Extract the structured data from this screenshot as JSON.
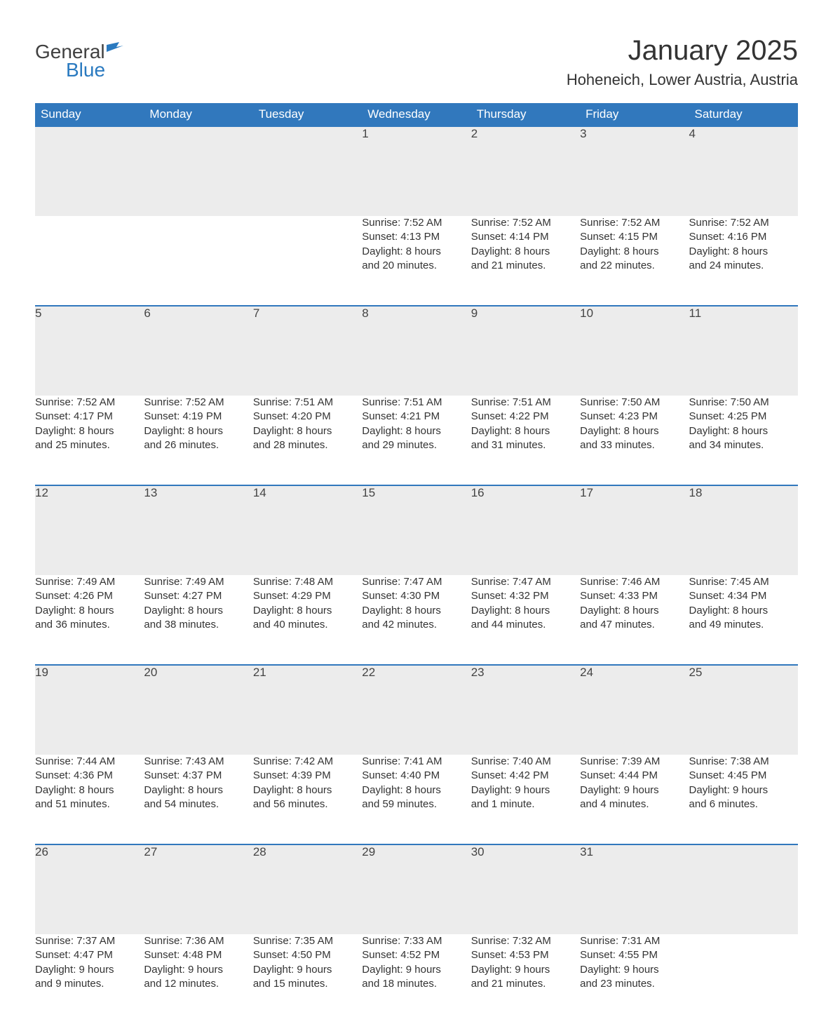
{
  "logo": {
    "general": "General",
    "blue": "Blue"
  },
  "title": "January 2025",
  "location": "Hoheneich, Lower Austria, Austria",
  "colors": {
    "header_bg": "#3178bd",
    "header_text": "#ffffff",
    "daynum_bg": "#ececec",
    "border_top": "#3178bd",
    "text": "#333333",
    "logo_blue": "#2a7ac0",
    "logo_gray": "#404040",
    "background": "#ffffff"
  },
  "fonts": {
    "title_size": 40,
    "location_size": 22,
    "header_cell_size": 17,
    "daynum_size": 17,
    "detail_size": 15
  },
  "columns": [
    "Sunday",
    "Monday",
    "Tuesday",
    "Wednesday",
    "Thursday",
    "Friday",
    "Saturday"
  ],
  "weeks": [
    [
      null,
      null,
      null,
      {
        "n": "1",
        "sr": "Sunrise: 7:52 AM",
        "ss": "Sunset: 4:13 PM",
        "dl1": "Daylight: 8 hours",
        "dl2": "and 20 minutes."
      },
      {
        "n": "2",
        "sr": "Sunrise: 7:52 AM",
        "ss": "Sunset: 4:14 PM",
        "dl1": "Daylight: 8 hours",
        "dl2": "and 21 minutes."
      },
      {
        "n": "3",
        "sr": "Sunrise: 7:52 AM",
        "ss": "Sunset: 4:15 PM",
        "dl1": "Daylight: 8 hours",
        "dl2": "and 22 minutes."
      },
      {
        "n": "4",
        "sr": "Sunrise: 7:52 AM",
        "ss": "Sunset: 4:16 PM",
        "dl1": "Daylight: 8 hours",
        "dl2": "and 24 minutes."
      }
    ],
    [
      {
        "n": "5",
        "sr": "Sunrise: 7:52 AM",
        "ss": "Sunset: 4:17 PM",
        "dl1": "Daylight: 8 hours",
        "dl2": "and 25 minutes."
      },
      {
        "n": "6",
        "sr": "Sunrise: 7:52 AM",
        "ss": "Sunset: 4:19 PM",
        "dl1": "Daylight: 8 hours",
        "dl2": "and 26 minutes."
      },
      {
        "n": "7",
        "sr": "Sunrise: 7:51 AM",
        "ss": "Sunset: 4:20 PM",
        "dl1": "Daylight: 8 hours",
        "dl2": "and 28 minutes."
      },
      {
        "n": "8",
        "sr": "Sunrise: 7:51 AM",
        "ss": "Sunset: 4:21 PM",
        "dl1": "Daylight: 8 hours",
        "dl2": "and 29 minutes."
      },
      {
        "n": "9",
        "sr": "Sunrise: 7:51 AM",
        "ss": "Sunset: 4:22 PM",
        "dl1": "Daylight: 8 hours",
        "dl2": "and 31 minutes."
      },
      {
        "n": "10",
        "sr": "Sunrise: 7:50 AM",
        "ss": "Sunset: 4:23 PM",
        "dl1": "Daylight: 8 hours",
        "dl2": "and 33 minutes."
      },
      {
        "n": "11",
        "sr": "Sunrise: 7:50 AM",
        "ss": "Sunset: 4:25 PM",
        "dl1": "Daylight: 8 hours",
        "dl2": "and 34 minutes."
      }
    ],
    [
      {
        "n": "12",
        "sr": "Sunrise: 7:49 AM",
        "ss": "Sunset: 4:26 PM",
        "dl1": "Daylight: 8 hours",
        "dl2": "and 36 minutes."
      },
      {
        "n": "13",
        "sr": "Sunrise: 7:49 AM",
        "ss": "Sunset: 4:27 PM",
        "dl1": "Daylight: 8 hours",
        "dl2": "and 38 minutes."
      },
      {
        "n": "14",
        "sr": "Sunrise: 7:48 AM",
        "ss": "Sunset: 4:29 PM",
        "dl1": "Daylight: 8 hours",
        "dl2": "and 40 minutes."
      },
      {
        "n": "15",
        "sr": "Sunrise: 7:47 AM",
        "ss": "Sunset: 4:30 PM",
        "dl1": "Daylight: 8 hours",
        "dl2": "and 42 minutes."
      },
      {
        "n": "16",
        "sr": "Sunrise: 7:47 AM",
        "ss": "Sunset: 4:32 PM",
        "dl1": "Daylight: 8 hours",
        "dl2": "and 44 minutes."
      },
      {
        "n": "17",
        "sr": "Sunrise: 7:46 AM",
        "ss": "Sunset: 4:33 PM",
        "dl1": "Daylight: 8 hours",
        "dl2": "and 47 minutes."
      },
      {
        "n": "18",
        "sr": "Sunrise: 7:45 AM",
        "ss": "Sunset: 4:34 PM",
        "dl1": "Daylight: 8 hours",
        "dl2": "and 49 minutes."
      }
    ],
    [
      {
        "n": "19",
        "sr": "Sunrise: 7:44 AM",
        "ss": "Sunset: 4:36 PM",
        "dl1": "Daylight: 8 hours",
        "dl2": "and 51 minutes."
      },
      {
        "n": "20",
        "sr": "Sunrise: 7:43 AM",
        "ss": "Sunset: 4:37 PM",
        "dl1": "Daylight: 8 hours",
        "dl2": "and 54 minutes."
      },
      {
        "n": "21",
        "sr": "Sunrise: 7:42 AM",
        "ss": "Sunset: 4:39 PM",
        "dl1": "Daylight: 8 hours",
        "dl2": "and 56 minutes."
      },
      {
        "n": "22",
        "sr": "Sunrise: 7:41 AM",
        "ss": "Sunset: 4:40 PM",
        "dl1": "Daylight: 8 hours",
        "dl2": "and 59 minutes."
      },
      {
        "n": "23",
        "sr": "Sunrise: 7:40 AM",
        "ss": "Sunset: 4:42 PM",
        "dl1": "Daylight: 9 hours",
        "dl2": "and 1 minute."
      },
      {
        "n": "24",
        "sr": "Sunrise: 7:39 AM",
        "ss": "Sunset: 4:44 PM",
        "dl1": "Daylight: 9 hours",
        "dl2": "and 4 minutes."
      },
      {
        "n": "25",
        "sr": "Sunrise: 7:38 AM",
        "ss": "Sunset: 4:45 PM",
        "dl1": "Daylight: 9 hours",
        "dl2": "and 6 minutes."
      }
    ],
    [
      {
        "n": "26",
        "sr": "Sunrise: 7:37 AM",
        "ss": "Sunset: 4:47 PM",
        "dl1": "Daylight: 9 hours",
        "dl2": "and 9 minutes."
      },
      {
        "n": "27",
        "sr": "Sunrise: 7:36 AM",
        "ss": "Sunset: 4:48 PM",
        "dl1": "Daylight: 9 hours",
        "dl2": "and 12 minutes."
      },
      {
        "n": "28",
        "sr": "Sunrise: 7:35 AM",
        "ss": "Sunset: 4:50 PM",
        "dl1": "Daylight: 9 hours",
        "dl2": "and 15 minutes."
      },
      {
        "n": "29",
        "sr": "Sunrise: 7:33 AM",
        "ss": "Sunset: 4:52 PM",
        "dl1": "Daylight: 9 hours",
        "dl2": "and 18 minutes."
      },
      {
        "n": "30",
        "sr": "Sunrise: 7:32 AM",
        "ss": "Sunset: 4:53 PM",
        "dl1": "Daylight: 9 hours",
        "dl2": "and 21 minutes."
      },
      {
        "n": "31",
        "sr": "Sunrise: 7:31 AM",
        "ss": "Sunset: 4:55 PM",
        "dl1": "Daylight: 9 hours",
        "dl2": "and 23 minutes."
      },
      null
    ]
  ]
}
